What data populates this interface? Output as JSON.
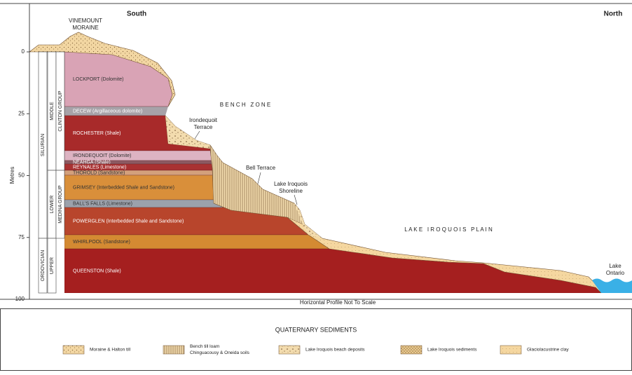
{
  "header": {
    "south": "South",
    "north": "North"
  },
  "landform": {
    "lines": [
      "VINEMOUNT",
      "MORAINE"
    ]
  },
  "axis": {
    "label": "Metres",
    "ticks": [
      0,
      25,
      50,
      75,
      100
    ]
  },
  "columns": {
    "systems": [
      "SILURIAN",
      "ORDOVICIAN"
    ],
    "series": [
      "MIDDLE",
      "LOWER",
      "UPPER"
    ],
    "groups": [
      "CLINTON GROUP",
      "MEDINA GROUP"
    ]
  },
  "strata": [
    "LOCKPORT (Dolomite)",
    "DECEW (Argillaceous dolomite)",
    "ROCHESTER (Shale)",
    "IRONDEQUOIT (Dolomite)",
    "NEAHGA (Shale)",
    "REYNALES (Limestone)",
    "THOROLD (Sandstone)",
    "GRIMSEY (Interbedded Shale and Sandstone)",
    "BALL'S FALLS (Limestone)",
    "POWERGLEN (Interbedded Shale and Sandstone)",
    "WHIRLPOOL (Sandstone)",
    "QUEENSTON (Shale)"
  ],
  "annotations": {
    "bench_zone": "B E N C H   Z O N E",
    "irondequoit_terrace": [
      "Irondequoit",
      "Terrace"
    ],
    "bell_terrace": "Bell Terrace",
    "shoreline": [
      "Lake Iroquois",
      "Shoreline"
    ],
    "plain": "L A K E   I R O Q U O I S   P L A I N",
    "lake": [
      "Lake",
      "Ontario"
    ]
  },
  "footer_note": "Horizontal Profile Not To Scale",
  "legend": {
    "title": "QUATERNARY SEDIMENTS",
    "items": [
      {
        "lines": [
          "Moraine & Halton till"
        ]
      },
      {
        "lines": [
          "Bench till loam",
          "Chinguacousy & Oneida soils"
        ]
      },
      {
        "lines": [
          "Lake Iroquois beach deposits"
        ]
      },
      {
        "lines": [
          "Lake Iroquois sediments"
        ]
      },
      {
        "lines": [
          "Glaciolacustrine clay"
        ]
      }
    ]
  }
}
